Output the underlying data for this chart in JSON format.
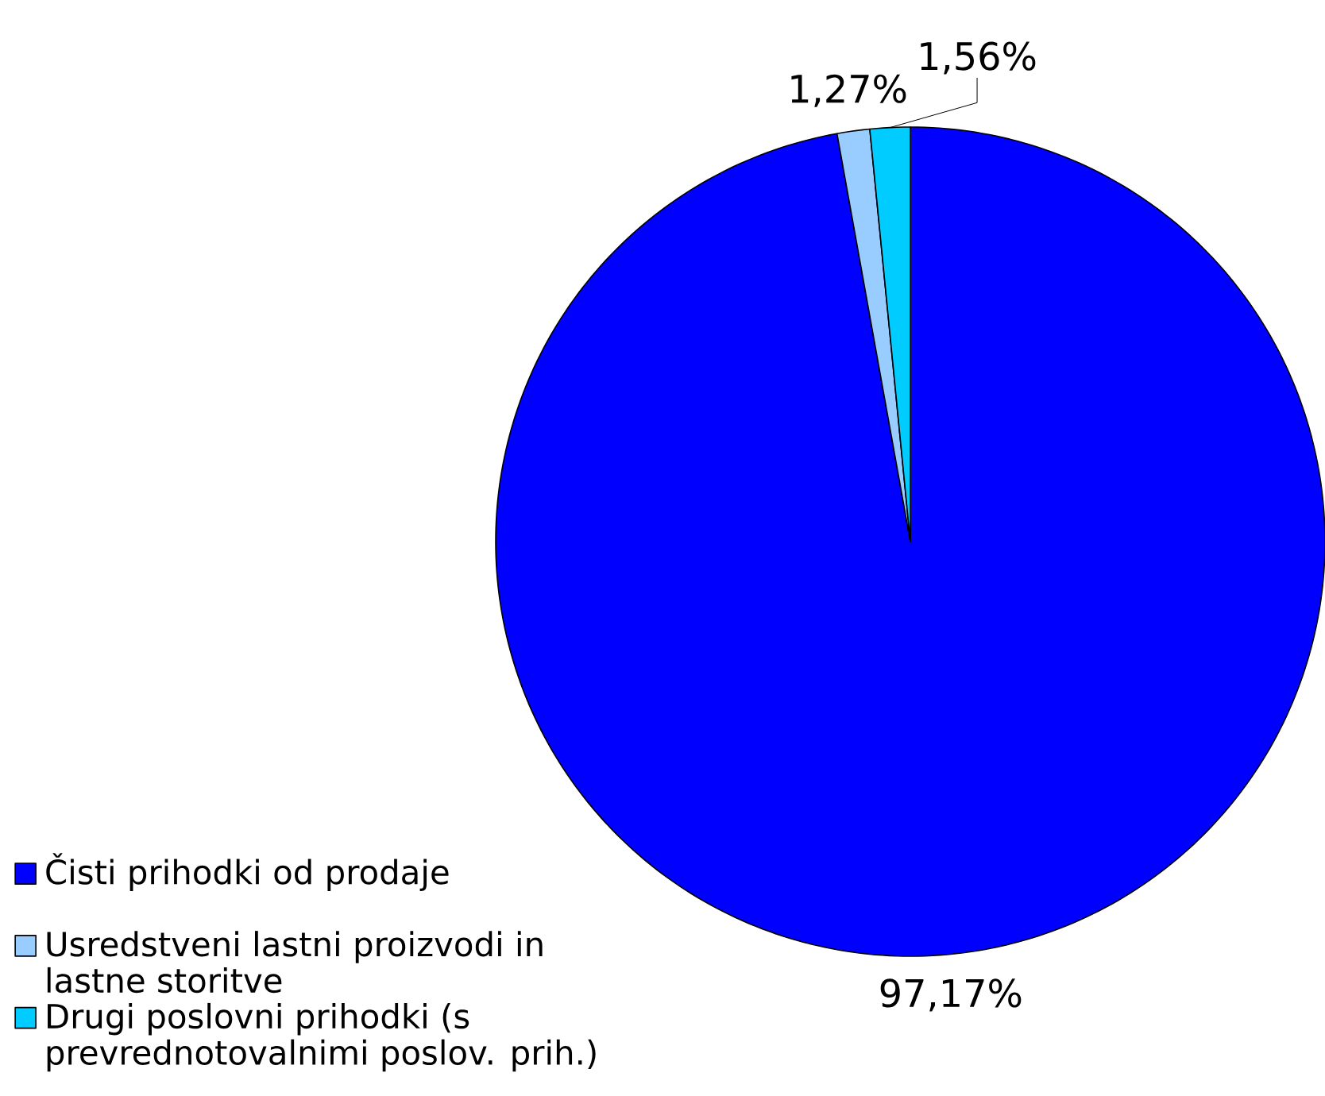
{
  "chart_data": {
    "type": "pie",
    "categories": [
      "Čisti prihodki od prodaje",
      "Usredstveni lastni proizvodi in lastne storitve",
      "Drugi poslovni prihodki (s prevrednotovalnimi poslov. prih.)"
    ],
    "values": [
      97.17,
      1.27,
      1.56
    ],
    "colors": [
      "#0000ff",
      "#99ccff",
      "#00ccff"
    ],
    "value_labels": [
      "97,17%",
      "1,27%",
      "1,56%"
    ],
    "legend": "bottom left"
  }
}
